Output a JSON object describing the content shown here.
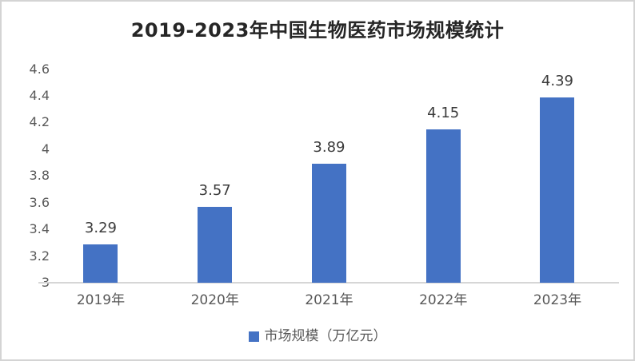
{
  "window": {
    "background": "#ffffff",
    "border_color": "#d4d4d4"
  },
  "chart_data": {
    "type": "bar",
    "title": "2019-2023年中国生物医药市场规模统计",
    "categories": [
      "2019年",
      "2020年",
      "2021年",
      "2022年",
      "2023年"
    ],
    "values": [
      3.29,
      3.57,
      3.89,
      4.15,
      4.39
    ],
    "value_labels": [
      "3.29",
      "3.57",
      "3.89",
      "4.15",
      "4.39"
    ],
    "series_name": "市场规模（万亿元）",
    "xlabel": "",
    "ylabel": "",
    "ylim": [
      3,
      4.6
    ],
    "ytick_interval": 0.2,
    "ytick_labels": [
      "4.6",
      "4.4",
      "4.2",
      "4",
      "3.8",
      "3.6",
      "3.4",
      "3.2",
      "3"
    ],
    "grid": false,
    "legend_position": "bottom",
    "bar_color": "#4472C4",
    "axis_line_color": "#d6d6d6",
    "value_label_color": "#3b3b3b",
    "tick_label_color": "#595959",
    "title_color": "#262626"
  },
  "legend": {
    "label": "市场规模（万亿元）"
  }
}
